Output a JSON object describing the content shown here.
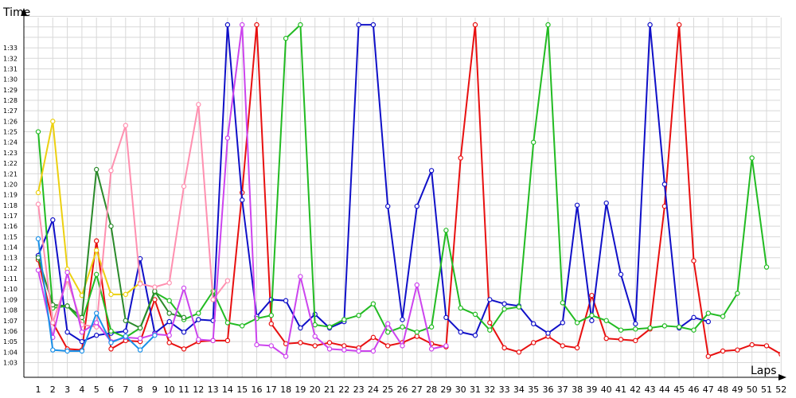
{
  "chart_data": {
    "type": "line",
    "xlabel": "Laps",
    "ylabel": "Time",
    "x_ticks": [
      "1",
      "2",
      "3",
      "4",
      "5",
      "6",
      "7",
      "8",
      "9",
      "10",
      "11",
      "12",
      "13",
      "14",
      "15",
      "16",
      "17",
      "18",
      "19",
      "20",
      "21",
      "22",
      "23",
      "24",
      "25",
      "26",
      "27",
      "28",
      "29",
      "30",
      "31",
      "32",
      "33",
      "34",
      "35",
      "36",
      "37",
      "38",
      "39",
      "40",
      "41",
      "42",
      "43",
      "44",
      "45",
      "46",
      "47",
      "48",
      "49",
      "50",
      "51",
      "52"
    ],
    "y_ticks": [
      "1:03",
      "1:04",
      "1:05",
      "1:06",
      "1:07",
      "1:08",
      "1:09",
      "1:10",
      "1:11",
      "1:12",
      "1:13",
      "1:14",
      "1:15",
      "1:16",
      "1:17",
      "1:18",
      "1:19",
      "1:20",
      "1:21",
      "1:22",
      "1:23",
      "1:24",
      "1:25",
      "1:26",
      "1:27",
      "1:28",
      "1:29",
      "1:30",
      "1:31",
      "1:32",
      "1:33"
    ],
    "xlim": [
      1,
      52
    ],
    "ylim": [
      62.3,
      95.2
    ],
    "grid": true,
    "series": [
      {
        "color": "#e81010",
        "points": [
          [
            1,
            72.8
          ],
          [
            2,
            66.8
          ],
          [
            3,
            64.3
          ],
          [
            4,
            64.2
          ],
          [
            5,
            74.6
          ],
          [
            6,
            64.3
          ],
          [
            7,
            65.1
          ],
          [
            8,
            65.0
          ],
          [
            9,
            69.0
          ],
          [
            10,
            64.9
          ],
          [
            11,
            64.3
          ],
          [
            12,
            65.0
          ],
          [
            13,
            65.1
          ],
          [
            14,
            65.1
          ],
          [
            15,
            79.2
          ],
          [
            16,
            95.2
          ],
          [
            17,
            66.7
          ],
          [
            18,
            64.8
          ],
          [
            19,
            64.9
          ],
          [
            20,
            64.6
          ],
          [
            21,
            64.9
          ],
          [
            22,
            64.6
          ],
          [
            23,
            64.4
          ],
          [
            24,
            65.4
          ],
          [
            25,
            64.6
          ],
          [
            26,
            64.9
          ],
          [
            27,
            65.5
          ],
          [
            28,
            64.8
          ],
          [
            29,
            64.5
          ],
          [
            30,
            82.5
          ],
          [
            31,
            95.2
          ],
          [
            32,
            66.8
          ],
          [
            33,
            64.4
          ],
          [
            34,
            64.0
          ],
          [
            35,
            64.9
          ],
          [
            36,
            65.5
          ],
          [
            37,
            64.6
          ],
          [
            38,
            64.4
          ],
          [
            39,
            69.4
          ],
          [
            40,
            65.3
          ],
          [
            41,
            65.2
          ],
          [
            42,
            65.1
          ],
          [
            43,
            66.2
          ],
          [
            44,
            77.9
          ],
          [
            45,
            95.2
          ],
          [
            46,
            72.7
          ],
          [
            47,
            63.6
          ],
          [
            48,
            64.1
          ],
          [
            49,
            64.2
          ],
          [
            50,
            64.7
          ],
          [
            51,
            64.6
          ],
          [
            52,
            63.8
          ]
        ]
      },
      {
        "color": "#1010c8",
        "points": [
          [
            1,
            73.2
          ],
          [
            2,
            76.6
          ],
          [
            3,
            65.9
          ],
          [
            4,
            65.0
          ],
          [
            5,
            65.6
          ],
          [
            6,
            65.8
          ],
          [
            7,
            66.0
          ],
          [
            8,
            72.9
          ],
          [
            9,
            65.8
          ],
          [
            10,
            66.9
          ],
          [
            11,
            65.9
          ],
          [
            12,
            67.1
          ],
          [
            13,
            67.0
          ],
          [
            14,
            95.2
          ],
          [
            15,
            78.5
          ],
          [
            16,
            67.4
          ],
          [
            17,
            69.0
          ],
          [
            18,
            68.9
          ],
          [
            19,
            66.3
          ],
          [
            20,
            67.6
          ],
          [
            21,
            66.3
          ],
          [
            22,
            66.9
          ],
          [
            23,
            95.2
          ],
          [
            24,
            95.2
          ],
          [
            25,
            77.9
          ],
          [
            26,
            67.1
          ],
          [
            27,
            77.9
          ],
          [
            28,
            81.3
          ],
          [
            29,
            67.3
          ],
          [
            30,
            65.9
          ],
          [
            31,
            65.6
          ],
          [
            32,
            69.0
          ],
          [
            33,
            68.6
          ],
          [
            34,
            68.4
          ],
          [
            35,
            66.7
          ],
          [
            36,
            65.8
          ],
          [
            37,
            66.8
          ],
          [
            38,
            78.0
          ],
          [
            39,
            67.0
          ],
          [
            40,
            78.2
          ],
          [
            41,
            71.4
          ],
          [
            42,
            66.7
          ],
          [
            43,
            95.2
          ],
          [
            44,
            80.0
          ],
          [
            45,
            66.3
          ],
          [
            46,
            67.3
          ],
          [
            47,
            66.9
          ]
        ]
      },
      {
        "color": "#22bb22",
        "points": [
          [
            1,
            85.0
          ],
          [
            2,
            68.2
          ],
          [
            3,
            68.4
          ],
          [
            4,
            66.9
          ],
          [
            5,
            71.4
          ],
          [
            6,
            66.0
          ],
          [
            7,
            65.4
          ],
          [
            8,
            66.3
          ],
          [
            9,
            69.7
          ],
          [
            10,
            68.9
          ],
          [
            11,
            67.1
          ],
          [
            12,
            67.7
          ],
          [
            13,
            69.8
          ],
          [
            14,
            66.8
          ],
          [
            15,
            66.5
          ],
          [
            16,
            67.2
          ],
          [
            17,
            67.5
          ],
          [
            18,
            93.9
          ],
          [
            19,
            95.2
          ],
          [
            20,
            66.6
          ],
          [
            21,
            66.4
          ],
          [
            22,
            67.1
          ],
          [
            23,
            67.5
          ],
          [
            24,
            68.6
          ],
          [
            25,
            65.9
          ],
          [
            26,
            66.4
          ],
          [
            27,
            65.9
          ],
          [
            28,
            66.4
          ],
          [
            29,
            75.6
          ],
          [
            30,
            68.2
          ],
          [
            31,
            67.6
          ],
          [
            32,
            66.1
          ],
          [
            33,
            68.1
          ],
          [
            34,
            68.3
          ],
          [
            35,
            84.0
          ],
          [
            36,
            95.2
          ],
          [
            37,
            68.7
          ],
          [
            38,
            66.8
          ],
          [
            39,
            67.5
          ],
          [
            40,
            67.0
          ],
          [
            41,
            66.1
          ],
          [
            42,
            66.2
          ],
          [
            43,
            66.3
          ],
          [
            44,
            66.5
          ],
          [
            45,
            66.4
          ],
          [
            46,
            66.1
          ],
          [
            47,
            67.7
          ],
          [
            48,
            67.4
          ],
          [
            49,
            69.6
          ],
          [
            50,
            82.5
          ],
          [
            51,
            72.1
          ]
        ]
      },
      {
        "color": "#ecd010",
        "points": [
          [
            1,
            79.2
          ],
          [
            2,
            86.0
          ],
          [
            3,
            71.9
          ],
          [
            4,
            69.4
          ],
          [
            5,
            73.7
          ],
          [
            6,
            69.5
          ],
          [
            7,
            69.5
          ],
          [
            8,
            70.6
          ]
        ]
      },
      {
        "color": "#2a8a2a",
        "points": [
          [
            1,
            73.0
          ],
          [
            2,
            68.5
          ],
          [
            3,
            68.4
          ],
          [
            4,
            67.3
          ],
          [
            5,
            81.4
          ],
          [
            6,
            76.0
          ],
          [
            7,
            67.0
          ],
          [
            8,
            66.3
          ],
          [
            9,
            69.8
          ],
          [
            10,
            67.7
          ],
          [
            11,
            67.3
          ]
        ]
      },
      {
        "color": "#ff90b0",
        "points": [
          [
            1,
            78.1
          ],
          [
            2,
            66.8
          ],
          [
            3,
            70.9
          ],
          [
            4,
            66.6
          ],
          [
            5,
            66.4
          ],
          [
            6,
            81.3
          ],
          [
            7,
            85.6
          ],
          [
            8,
            70.5
          ],
          [
            9,
            70.2
          ],
          [
            10,
            70.6
          ],
          [
            11,
            79.8
          ],
          [
            12,
            87.6
          ],
          [
            13,
            69.0
          ],
          [
            14,
            70.8
          ]
        ]
      },
      {
        "color": "#cc44ee",
        "points": [
          [
            1,
            71.8
          ],
          [
            2,
            65.4
          ],
          [
            3,
            71.6
          ],
          [
            4,
            65.9
          ],
          [
            5,
            66.8
          ],
          [
            6,
            65.0
          ],
          [
            7,
            65.4
          ],
          [
            8,
            65.3
          ],
          [
            9,
            65.7
          ],
          [
            10,
            65.6
          ],
          [
            11,
            70.1
          ],
          [
            12,
            65.2
          ],
          [
            13,
            65.1
          ],
          [
            14,
            84.4
          ],
          [
            15,
            95.2
          ],
          [
            16,
            64.7
          ],
          [
            17,
            64.6
          ],
          [
            18,
            63.6
          ],
          [
            19,
            71.2
          ],
          [
            20,
            65.5
          ],
          [
            21,
            64.3
          ],
          [
            22,
            64.2
          ],
          [
            23,
            64.1
          ],
          [
            24,
            64.1
          ],
          [
            25,
            66.7
          ],
          [
            26,
            64.6
          ],
          [
            27,
            70.4
          ],
          [
            28,
            64.3
          ],
          [
            29,
            64.6
          ]
        ]
      },
      {
        "color": "#1a90e8",
        "points": [
          [
            1,
            74.8
          ],
          [
            2,
            64.2
          ],
          [
            3,
            64.1
          ],
          [
            4,
            64.1
          ],
          [
            5,
            67.7
          ],
          [
            6,
            64.9
          ],
          [
            7,
            65.5
          ],
          [
            8,
            64.2
          ],
          [
            9,
            65.6
          ]
        ]
      }
    ]
  }
}
